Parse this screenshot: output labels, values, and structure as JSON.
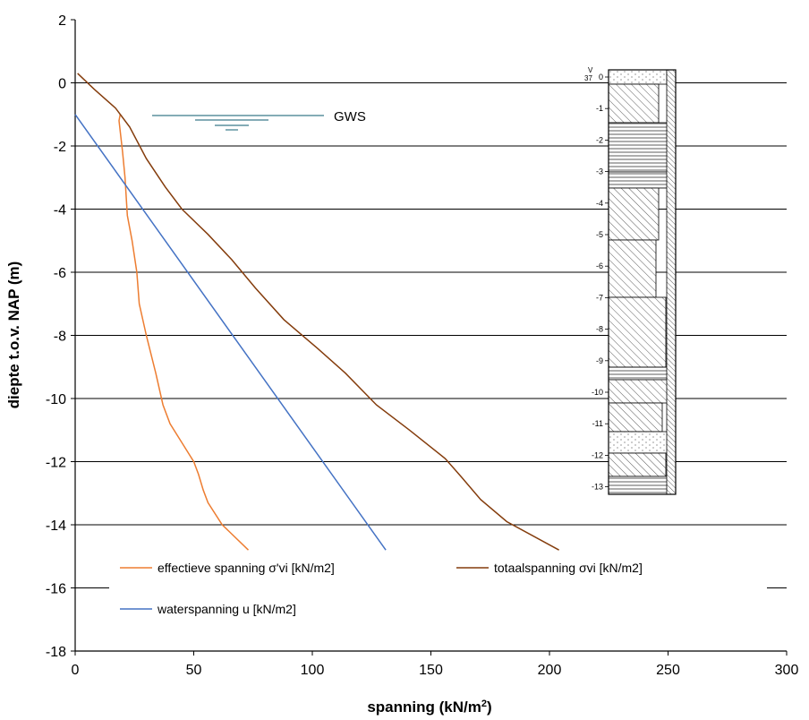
{
  "chart_data": {
    "type": "line",
    "xlabel": "spanning (kN/m",
    "xlabel_sup": "2",
    "xlabel_end": ")",
    "ylabel": "diepte t.o.v. NAP (m)",
    "xlim": [
      0,
      300
    ],
    "ylim": [
      -18,
      2
    ],
    "x_ticks": [
      0,
      50,
      100,
      150,
      200,
      250,
      300
    ],
    "y_ticks": [
      2,
      0,
      -2,
      -4,
      -6,
      -8,
      -10,
      -12,
      -14,
      -16,
      -18
    ],
    "grid": "horizontal",
    "grid_color": "#000000",
    "series": [
      {
        "name": "effectieve  spanning  σ'vi [kN/m2]",
        "color": "#ED7D31",
        "points": [
          [
            19,
            -1.0
          ],
          [
            18.5,
            -1.2
          ],
          [
            20,
            -2.2
          ],
          [
            21,
            -3.0
          ],
          [
            22,
            -4.2
          ],
          [
            24,
            -5.0
          ],
          [
            26,
            -6.0
          ],
          [
            27,
            -7.0
          ],
          [
            30,
            -8.0
          ],
          [
            34,
            -9.2
          ],
          [
            37,
            -10.2
          ],
          [
            40,
            -10.8
          ],
          [
            45,
            -11.4
          ],
          [
            50,
            -12.0
          ],
          [
            52,
            -12.4
          ],
          [
            54,
            -12.9
          ],
          [
            56,
            -13.3
          ],
          [
            62,
            -14.0
          ],
          [
            73,
            -14.8
          ]
        ]
      },
      {
        "name": "totaalspanning  σvi [kN/m2]",
        "color": "#843C0C",
        "points": [
          [
            1,
            0.3
          ],
          [
            8,
            -0.2
          ],
          [
            17,
            -0.8
          ],
          [
            23,
            -1.4
          ],
          [
            30,
            -2.4
          ],
          [
            38,
            -3.3
          ],
          [
            45,
            -4.0
          ],
          [
            56,
            -4.8
          ],
          [
            66,
            -5.6
          ],
          [
            76,
            -6.5
          ],
          [
            88,
            -7.5
          ],
          [
            102,
            -8.4
          ],
          [
            114,
            -9.2
          ],
          [
            127,
            -10.2
          ],
          [
            141,
            -11.0
          ],
          [
            156,
            -11.9
          ],
          [
            163,
            -12.5
          ],
          [
            171,
            -13.2
          ],
          [
            182,
            -13.9
          ],
          [
            204,
            -14.8
          ]
        ]
      },
      {
        "name": "waterspanning u [kN/m2]",
        "color": "#4472C4",
        "points": [
          [
            0,
            -1.0
          ],
          [
            131,
            -14.8
          ]
        ]
      }
    ],
    "annotations": [
      {
        "text": "GWS",
        "x": 108,
        "y": -1.1
      }
    ]
  },
  "boring_log": {
    "top_label": "V",
    "top_value": "37",
    "depth_labels": [
      "0",
      "-1",
      "-2",
      "-3",
      "-4",
      "-5",
      "-6",
      "-7",
      "-8",
      "-9",
      "-10",
      "-11",
      "-12",
      "-13"
    ]
  }
}
